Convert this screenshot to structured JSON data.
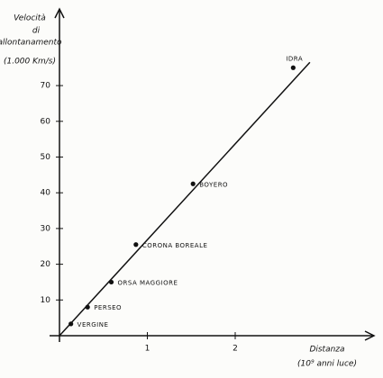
{
  "chart_data": {
    "type": "scatter",
    "ylabel": [
      "Velocità",
      "di",
      "allontanamento",
      "(1.000 Km/s)"
    ],
    "xlabel": [
      "Distanza",
      "(10⁹ anni luce)"
    ],
    "labels": [
      "VERGINE",
      "PERSEO",
      "ORSA MAGGIORE",
      "CORONA BOREALE",
      "BOYERO",
      "IDRA"
    ],
    "x": [
      0.13,
      0.32,
      0.59,
      0.87,
      1.52,
      2.66
    ],
    "values": [
      3.3,
      8,
      15,
      25.5,
      42.5,
      75
    ],
    "trend_line": {
      "x": [
        0,
        2.85
      ],
      "y": [
        0,
        76.5
      ]
    },
    "color": "#111111",
    "xlim": [
      0,
      3.6
    ],
    "ylim": [
      0,
      91
    ],
    "xticks": [
      1,
      2
    ],
    "yticks": [
      10,
      20,
      30,
      40,
      50,
      60,
      70
    ]
  }
}
